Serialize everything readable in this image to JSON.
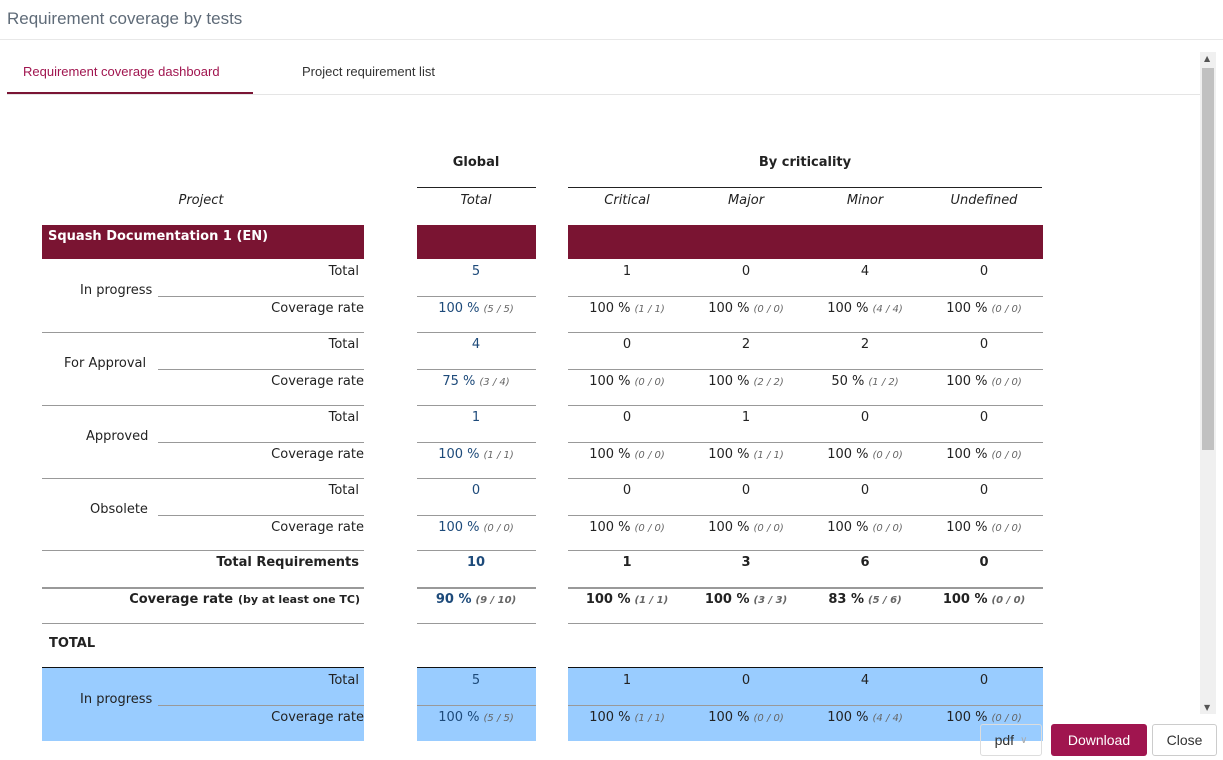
{
  "dialog": {
    "title": "Requirement coverage by tests"
  },
  "tabs": [
    {
      "label": "Requirement coverage dashboard",
      "active": true
    },
    {
      "label": "Project requirement list",
      "active": false
    }
  ],
  "table": {
    "group_headers": {
      "global": "Global",
      "criticality": "By criticality"
    },
    "columns": {
      "project": "Project",
      "total": "Total",
      "critical": "Critical",
      "major": "Major",
      "minor": "Minor",
      "undefined": "Undefined"
    },
    "row_labels": {
      "total": "Total",
      "coverage": "Coverage rate"
    },
    "project": {
      "name": "Squash Documentation 1 (EN)",
      "statuses": [
        {
          "label": "In progress",
          "total": [
            "5",
            "1",
            "0",
            "4",
            "0"
          ],
          "coverage": [
            [
              "100 %",
              "(5 / 5)"
            ],
            [
              "100 %",
              "(1 / 1)"
            ],
            [
              "100 %",
              "(0 / 0)"
            ],
            [
              "100 %",
              "(4 / 4)"
            ],
            [
              "100 %",
              "(0 / 0)"
            ]
          ]
        },
        {
          "label": "For Approval",
          "total": [
            "4",
            "0",
            "2",
            "2",
            "0"
          ],
          "coverage": [
            [
              "75 %",
              "(3 / 4)"
            ],
            [
              "100 %",
              "(0 / 0)"
            ],
            [
              "100 %",
              "(2 / 2)"
            ],
            [
              "50 %",
              "(1 / 2)"
            ],
            [
              "100 %",
              "(0 / 0)"
            ]
          ]
        },
        {
          "label": "Approved",
          "total": [
            "1",
            "0",
            "1",
            "0",
            "0"
          ],
          "coverage": [
            [
              "100 %",
              "(1 / 1)"
            ],
            [
              "100 %",
              "(0 / 0)"
            ],
            [
              "100 %",
              "(1 / 1)"
            ],
            [
              "100 %",
              "(0 / 0)"
            ],
            [
              "100 %",
              "(0 / 0)"
            ]
          ]
        },
        {
          "label": "Obsolete",
          "total": [
            "0",
            "0",
            "0",
            "0",
            "0"
          ],
          "coverage": [
            [
              "100 %",
              "(0 / 0)"
            ],
            [
              "100 %",
              "(0 / 0)"
            ],
            [
              "100 %",
              "(0 / 0)"
            ],
            [
              "100 %",
              "(0 / 0)"
            ],
            [
              "100 %",
              "(0 / 0)"
            ]
          ]
        }
      ],
      "total_requirements": {
        "label": "Total Requirements",
        "values": [
          "10",
          "1",
          "3",
          "6",
          "0"
        ]
      },
      "coverage_rate": {
        "label": "Coverage rate",
        "sublabel": "(by at least one TC)",
        "values": [
          [
            "90 %",
            "(9 / 10)"
          ],
          [
            "100 %",
            "(1 / 1)"
          ],
          [
            "100 %",
            "(3 / 3)"
          ],
          [
            "83 %",
            "(5 / 6)"
          ],
          [
            "100 %",
            "(0 / 0)"
          ]
        ]
      }
    },
    "grand_total": {
      "label": "TOTAL",
      "statuses": [
        {
          "label": "In progress",
          "total": [
            "5",
            "1",
            "0",
            "4",
            "0"
          ],
          "coverage": [
            [
              "100 %",
              "(5 / 5)"
            ],
            [
              "100 %",
              "(1 / 1)"
            ],
            [
              "100 %",
              "(0 / 0)"
            ],
            [
              "100 %",
              "(4 / 4)"
            ],
            [
              "100 %",
              "(0 / 0)"
            ]
          ]
        }
      ]
    }
  },
  "footer": {
    "format": "pdf",
    "download": "Download",
    "close": "Close"
  },
  "colors": {
    "accent": "#a0154f",
    "band": "#7a1432",
    "total_band": "#99ccff"
  }
}
